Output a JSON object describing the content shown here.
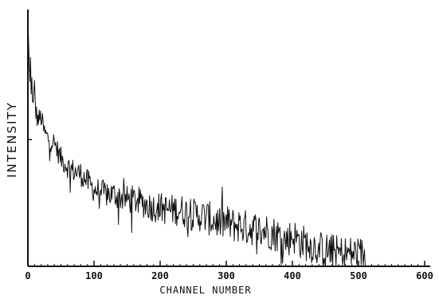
{
  "chart_data": {
    "type": "line",
    "xlabel": "CHANNEL NUMBER",
    "ylabel": "INTENSITY",
    "xlim": [
      0,
      600
    ],
    "x_ticks": [
      0,
      100,
      200,
      300,
      400,
      500,
      600
    ],
    "x_tick_labels": [
      "0",
      "100",
      "200",
      "300",
      "400",
      "500",
      "600"
    ],
    "grid": false,
    "series": [
      {
        "x": [
          0,
          1,
          2,
          3,
          4,
          5,
          6,
          8,
          10,
          12,
          15,
          20,
          25,
          30,
          40,
          50,
          60,
          70,
          80,
          90,
          100,
          110,
          120,
          130,
          140,
          150,
          160,
          170,
          180,
          190,
          200,
          210,
          220,
          230,
          240,
          250,
          260,
          270,
          280,
          290,
          300,
          310,
          320,
          330,
          340,
          350,
          360,
          370,
          380,
          390,
          400,
          410,
          420,
          430,
          440,
          450,
          460,
          470,
          480,
          490,
          500,
          510
        ],
        "values": [
          0.98,
          0.88,
          0.79,
          0.72,
          0.8,
          0.66,
          0.72,
          0.62,
          0.7,
          0.6,
          0.57,
          0.58,
          0.52,
          0.5,
          0.48,
          0.42,
          0.39,
          0.37,
          0.36,
          0.33,
          0.3,
          0.29,
          0.28,
          0.28,
          0.27,
          0.26,
          0.26,
          0.25,
          0.24,
          0.23,
          0.23,
          0.22,
          0.22,
          0.22,
          0.21,
          0.2,
          0.2,
          0.19,
          0.18,
          0.17,
          0.17,
          0.16,
          0.16,
          0.15,
          0.15,
          0.14,
          0.14,
          0.13,
          0.12,
          0.1,
          0.12,
          0.1,
          0.09,
          0.08,
          0.07,
          0.06,
          0.06,
          0.05,
          0.05,
          0.05,
          0.05,
          0.04
        ]
      }
    ]
  }
}
